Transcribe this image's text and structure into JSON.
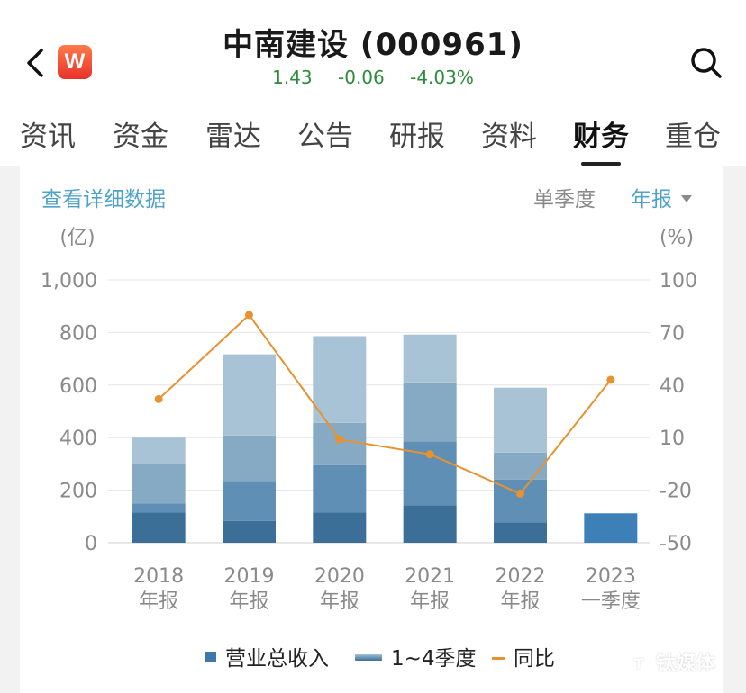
{
  "header": {
    "title": "中南建设 (000961)",
    "logo_letter": "W",
    "quote": {
      "price": "1.43",
      "change": "-0.06",
      "change_pct": "-4.03%"
    },
    "back_icon": "chevron-left-icon",
    "search_icon": "search-icon"
  },
  "tabs": [
    {
      "label": "资讯",
      "active": false
    },
    {
      "label": "资金",
      "active": false
    },
    {
      "label": "雷达",
      "active": false
    },
    {
      "label": "公告",
      "active": false
    },
    {
      "label": "研报",
      "active": false
    },
    {
      "label": "资料",
      "active": false
    },
    {
      "label": "财务",
      "active": true
    },
    {
      "label": "重仓",
      "active": false
    }
  ],
  "controls": {
    "detail_link": "查看详细数据",
    "single_quarter": "单季度",
    "annual": "年报"
  },
  "legend": {
    "revenue": "营业总收入",
    "quarters": "1~4季度",
    "yoy": "同比"
  },
  "watermark": "钛媒体",
  "colors": {
    "accent": "#4fa3c9",
    "quote_green": "#2e8b3e",
    "line_orange": "#e8922f",
    "q1": "#3b6f98",
    "q2": "#5f8fb5",
    "q3": "#86a9c4",
    "q4": "#a9c3d6",
    "latest_bar": "#3d80b8"
  },
  "chart_data": {
    "type": "bar",
    "stacked": true,
    "left_unit": "(亿)",
    "right_unit": "(%)",
    "left_ticks": [
      "1,000",
      "800",
      "600",
      "400",
      "200",
      "0"
    ],
    "right_ticks": [
      "100",
      "70",
      "40",
      "10",
      "-20",
      "-50"
    ],
    "ylim_left": [
      0,
      1000
    ],
    "ylim_right": [
      -50,
      100
    ],
    "categories": [
      [
        "2018",
        "年报"
      ],
      [
        "2019",
        "年报"
      ],
      [
        "2020",
        "年报"
      ],
      [
        "2021",
        "年报"
      ],
      [
        "2022",
        "年报"
      ],
      [
        "2023",
        "一季度"
      ]
    ],
    "quarterly_cumulative": [
      [
        115,
        150,
        298,
        400
      ],
      [
        83,
        235,
        408,
        717
      ],
      [
        115,
        295,
        456,
        786
      ],
      [
        143,
        385,
        610,
        792
      ],
      [
        78,
        240,
        343,
        590
      ],
      [
        112
      ]
    ],
    "yoy": [
      32,
      80,
      9,
      null,
      -22,
      43
    ],
    "yoy_2021": 0.5,
    "grid": true
  }
}
